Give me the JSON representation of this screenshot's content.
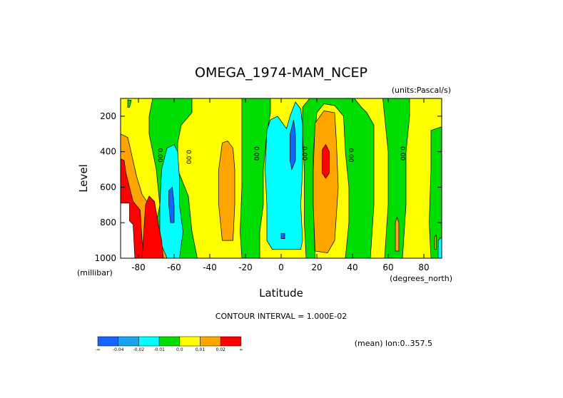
{
  "chart_data": {
    "type": "heatmap",
    "title": "OMEGA_1974-MAM_NCEP",
    "units_label": "(units:Pascal/s)",
    "xlabel": "Latitude",
    "xunit_label": "(degrees_north)",
    "ylabel": "Level",
    "yunit_label": "(millibar)",
    "xlim": [
      -90,
      90
    ],
    "ylim": [
      1000,
      100
    ],
    "x_ticks": [
      -80,
      -60,
      -40,
      -20,
      0,
      20,
      40,
      60,
      80
    ],
    "x_tick_labels": [
      "-80",
      "-60",
      "-40",
      "-20",
      "0",
      "20",
      "40",
      "60",
      "80"
    ],
    "y_ticks": [
      200,
      400,
      600,
      800,
      1000
    ],
    "y_tick_labels": [
      "200",
      "400",
      "600",
      "800",
      "1000"
    ],
    "contour_interval_label": "CONTOUR INTERVAL = 1.000E-02",
    "mean_note": "(mean) lon:0..357.5",
    "zero_contour_label": "0.00",
    "zero_label_positions": [
      [
        -69,
        420
      ],
      [
        -53,
        430
      ],
      [
        -15,
        410
      ],
      [
        12,
        410
      ],
      [
        38,
        420
      ],
      [
        67,
        410
      ]
    ],
    "colorbar": {
      "colors": [
        "#1464ff",
        "#17a4ee",
        "#00ffff",
        "#00dd00",
        "#ffff00",
        "#ffa500",
        "#ff0000"
      ],
      "tick_labels": [
        "-∞",
        "-0.04",
        "-0.02",
        "-0.01",
        "0.0",
        "0.01",
        "0.02",
        "∞"
      ]
    },
    "color_legend": {
      "yellow": "0.00 to 0.01",
      "green": "-0.01 to 0.00",
      "cyan": "-0.02 to -0.01",
      "blue": "-0.04 to -0.02",
      "orange": "0.01 to 0.02",
      "red": "0.02 and above"
    },
    "regions": [
      {
        "level": "green",
        "polygon": [
          [
            -72,
            100
          ],
          [
            -50,
            100
          ],
          [
            -50,
            180
          ],
          [
            -56,
            250
          ],
          [
            -58,
            350
          ],
          [
            -58,
            500
          ],
          [
            -52,
            650
          ],
          [
            -50,
            850
          ],
          [
            -47,
            1000
          ],
          [
            -74,
            1000
          ],
          [
            -72,
            900
          ],
          [
            -68,
            700
          ],
          [
            -70,
            500
          ],
          [
            -74,
            300
          ],
          [
            -74,
            200
          ]
        ]
      },
      {
        "level": "green",
        "polygon": [
          [
            -22,
            100
          ],
          [
            -6,
            100
          ],
          [
            -6,
            180
          ],
          [
            -8,
            300
          ],
          [
            -10,
            500
          ],
          [
            -10,
            700
          ],
          [
            -12,
            850
          ],
          [
            -12,
            1000
          ],
          [
            -22,
            1000
          ],
          [
            -23,
            850
          ],
          [
            -22,
            600
          ],
          [
            -22,
            300
          ]
        ]
      },
      {
        "level": "green",
        "polygon": [
          [
            16,
            100
          ],
          [
            12,
            150
          ],
          [
            12,
            300
          ],
          [
            13,
            500
          ],
          [
            13,
            800
          ],
          [
            14,
            1000
          ],
          [
            19,
            1000
          ],
          [
            18,
            700
          ],
          [
            18,
            400
          ],
          [
            20,
            180
          ],
          [
            24,
            130
          ],
          [
            30,
            140
          ],
          [
            35,
            200
          ],
          [
            36,
            400
          ],
          [
            38,
            600
          ],
          [
            38,
            800
          ],
          [
            36,
            1000
          ],
          [
            50,
            1000
          ],
          [
            52,
            700
          ],
          [
            52,
            400
          ],
          [
            52,
            250
          ],
          [
            48,
            180
          ],
          [
            45,
            150
          ],
          [
            41,
            100
          ]
        ]
      },
      {
        "level": "green",
        "polygon": [
          [
            57,
            100
          ],
          [
            72,
            100
          ],
          [
            72,
            200
          ],
          [
            70,
            400
          ],
          [
            70,
            700
          ],
          [
            68,
            1000
          ],
          [
            58,
            1000
          ],
          [
            60,
            700
          ],
          [
            60,
            400
          ],
          [
            58,
            200
          ]
        ]
      },
      {
        "level": "green",
        "polygon": [
          [
            84,
            280
          ],
          [
            90,
            260
          ],
          [
            90,
            1000
          ],
          [
            84,
            1000
          ],
          [
            83,
            800
          ],
          [
            84,
            500
          ]
        ]
      },
      {
        "level": "green",
        "polygon": [
          [
            -86,
            108
          ],
          [
            -84,
            110
          ],
          [
            -85,
            150
          ],
          [
            -86,
            150
          ]
        ]
      },
      {
        "level": "cyan",
        "polygon": [
          [
            -64,
            380
          ],
          [
            -60,
            360
          ],
          [
            -58,
            400
          ],
          [
            -57,
            550
          ],
          [
            -57,
            700
          ],
          [
            -55,
            850
          ],
          [
            -57,
            1000
          ],
          [
            -66,
            1000
          ],
          [
            -68,
            900
          ],
          [
            -68,
            700
          ],
          [
            -67,
            500
          ]
        ]
      },
      {
        "level": "blue",
        "polygon": [
          [
            -63,
            620
          ],
          [
            -61,
            600
          ],
          [
            -60,
            700
          ],
          [
            -60,
            800
          ],
          [
            -62,
            800
          ],
          [
            -63,
            700
          ]
        ]
      },
      {
        "level": "cyan",
        "polygon": [
          [
            -8,
            280
          ],
          [
            -6,
            220
          ],
          [
            -2,
            200
          ],
          [
            3,
            270
          ],
          [
            5,
            200
          ],
          [
            8,
            120
          ],
          [
            11,
            160
          ],
          [
            12,
            250
          ],
          [
            12,
            500
          ],
          [
            11,
            700
          ],
          [
            12,
            900
          ],
          [
            11,
            950
          ],
          [
            4,
            950
          ],
          [
            -5,
            950
          ],
          [
            -8,
            900
          ],
          [
            -8,
            700
          ],
          [
            -9,
            500
          ]
        ]
      },
      {
        "level": "blue",
        "polygon": [
          [
            5,
            300
          ],
          [
            7,
            220
          ],
          [
            8,
            300
          ],
          [
            8,
            450
          ],
          [
            6,
            500
          ],
          [
            5,
            450
          ]
        ]
      },
      {
        "level": "blue",
        "polygon": [
          [
            0,
            860
          ],
          [
            2,
            860
          ],
          [
            2,
            890
          ],
          [
            0,
            890
          ]
        ]
      },
      {
        "level": "cyan",
        "polygon": [
          [
            88,
            900
          ],
          [
            90,
            880
          ],
          [
            90,
            1000
          ],
          [
            88,
            1000
          ]
        ]
      },
      {
        "level": "orange",
        "polygon": [
          [
            -90,
            300
          ],
          [
            -86,
            320
          ],
          [
            -81,
            540
          ],
          [
            -78,
            640
          ],
          [
            -74,
            700
          ],
          [
            -70,
            850
          ],
          [
            -64,
            1000
          ],
          [
            -90,
            1000
          ]
        ]
      },
      {
        "level": "orange",
        "polygon": [
          [
            -33,
            350
          ],
          [
            -30,
            340
          ],
          [
            -27,
            380
          ],
          [
            -26,
            500
          ],
          [
            -26,
            700
          ],
          [
            -27,
            900
          ],
          [
            -33,
            900
          ],
          [
            -35,
            700
          ],
          [
            -35,
            500
          ]
        ]
      },
      {
        "level": "orange",
        "polygon": [
          [
            19,
            240
          ],
          [
            24,
            170
          ],
          [
            30,
            180
          ],
          [
            31,
            350
          ],
          [
            32,
            600
          ],
          [
            30,
            900
          ],
          [
            26,
            970
          ],
          [
            19,
            960
          ],
          [
            18,
            700
          ],
          [
            18,
            500
          ]
        ]
      },
      {
        "level": "orange",
        "polygon": [
          [
            64,
            800
          ],
          [
            65,
            770
          ],
          [
            66,
            800
          ],
          [
            66,
            960
          ],
          [
            64,
            960
          ]
        ]
      },
      {
        "level": "orange",
        "polygon": [
          [
            86,
            880
          ],
          [
            87,
            870
          ],
          [
            87,
            950
          ],
          [
            86,
            950
          ]
        ]
      },
      {
        "level": "red",
        "polygon": [
          [
            -90,
            440
          ],
          [
            -88,
            450
          ],
          [
            -87,
            520
          ],
          [
            -85,
            600
          ],
          [
            -83,
            680
          ],
          [
            -79,
            730
          ],
          [
            -78,
            900
          ],
          [
            -77,
            1000
          ],
          [
            -90,
            1000
          ]
        ]
      },
      {
        "level": "red",
        "polygon": [
          [
            -76,
            700
          ],
          [
            -74,
            650
          ],
          [
            -71,
            680
          ],
          [
            -69,
            800
          ],
          [
            -67,
            900
          ],
          [
            -66,
            1000
          ],
          [
            -78,
            1000
          ],
          [
            -77,
            850
          ]
        ]
      },
      {
        "level": "red",
        "polygon": [
          [
            23,
            390
          ],
          [
            25,
            360
          ],
          [
            27,
            400
          ],
          [
            27,
            520
          ],
          [
            25,
            550
          ],
          [
            23,
            520
          ]
        ]
      }
    ],
    "white_area": [
      [
        -90,
        690
      ],
      [
        -85,
        690
      ],
      [
        -85,
        790
      ],
      [
        -83,
        810
      ],
      [
        -82,
        1000
      ],
      [
        -90,
        1000
      ]
    ]
  }
}
